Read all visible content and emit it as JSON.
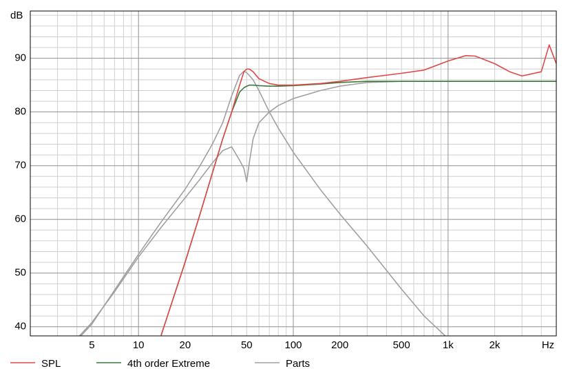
{
  "chart_data": {
    "type": "line",
    "y_label": "dB",
    "xscale": "log",
    "grid": true,
    "xlim": [
      2,
      5000
    ],
    "ylim": [
      38.3,
      98.8
    ],
    "xticks": [
      5,
      10,
      20,
      50,
      100,
      200,
      500,
      {
        "value": 1000,
        "label": "1k"
      },
      {
        "value": 2000,
        "label": "2k"
      },
      {
        "value": 5000,
        "label": "Hz"
      }
    ],
    "yticks": [
      40,
      50,
      60,
      70,
      80,
      90
    ],
    "x_minor_ticks": [
      2,
      3,
      4,
      5,
      6,
      7,
      8,
      9,
      20,
      30,
      40,
      50,
      60,
      70,
      80,
      90,
      200,
      300,
      400,
      500,
      600,
      700,
      800,
      900,
      2000,
      3000,
      4000
    ],
    "x_major_ticks": [
      10,
      100,
      1000
    ],
    "y_minor_ticks": [
      42,
      44,
      46,
      48,
      52,
      54,
      56,
      58,
      62,
      64,
      66,
      68,
      72,
      74,
      76,
      78,
      82,
      84,
      86,
      88,
      92,
      94,
      96,
      98
    ],
    "x": [
      4,
      5,
      7,
      10,
      14,
      20,
      25,
      30,
      35,
      40,
      45,
      48,
      50,
      52,
      55,
      60,
      70,
      80,
      100,
      150,
      200,
      300,
      500,
      700,
      1000,
      1300,
      1500,
      2000,
      2500,
      3000,
      4000,
      4500,
      5000
    ],
    "series": [
      {
        "name": "SPL",
        "color": "#e04848",
        "values": [
          null,
          null,
          null,
          null,
          38.4,
          52,
          61,
          68.6,
          75,
          80,
          85,
          87.5,
          88,
          88,
          87.5,
          86.2,
          85.3,
          85,
          85,
          85.3,
          85.7,
          86.4,
          87.2,
          87.8,
          89.5,
          90.5,
          90.4,
          89,
          87.5,
          86.7,
          87.5,
          92.5,
          89
        ]
      },
      {
        "name": "4th order Extreme",
        "color": "#3a7a3a",
        "values": [
          null,
          null,
          null,
          null,
          38.4,
          52,
          61,
          68.6,
          75,
          80,
          83.7,
          84.5,
          84.8,
          85,
          85,
          84.9,
          84.8,
          84.8,
          84.9,
          85.2,
          85.5,
          85.7,
          85.7,
          85.7,
          85.7,
          85.7,
          85.7,
          85.7,
          85.7,
          85.7,
          85.7,
          85.7,
          85.7
        ]
      },
      {
        "name": "Parts",
        "color": "#a0a0a0",
        "values": [
          37.5,
          40.5,
          46.8,
          53.5,
          59.5,
          65.6,
          70,
          74,
          78,
          83,
          86.8,
          87.6,
          87.3,
          86.8,
          86,
          84,
          80,
          77,
          72.5,
          65.5,
          61,
          55,
          47,
          42,
          37.8,
          null,
          null,
          null,
          null,
          null,
          null,
          null,
          null
        ]
      },
      {
        "name": "Parts",
        "color": "#a0a0a0",
        "values": [
          37.8,
          40.8,
          46.5,
          53,
          58.5,
          64,
          67.5,
          70.5,
          72.8,
          73.5,
          71,
          69.5,
          67,
          70.5,
          75,
          78,
          80,
          81.2,
          82.5,
          84,
          84.8,
          85.5,
          85.7,
          85.7,
          85.7,
          85.7,
          85.7,
          85.7,
          85.7,
          85.7,
          85.7,
          85.7,
          85.7
        ]
      }
    ]
  }
}
